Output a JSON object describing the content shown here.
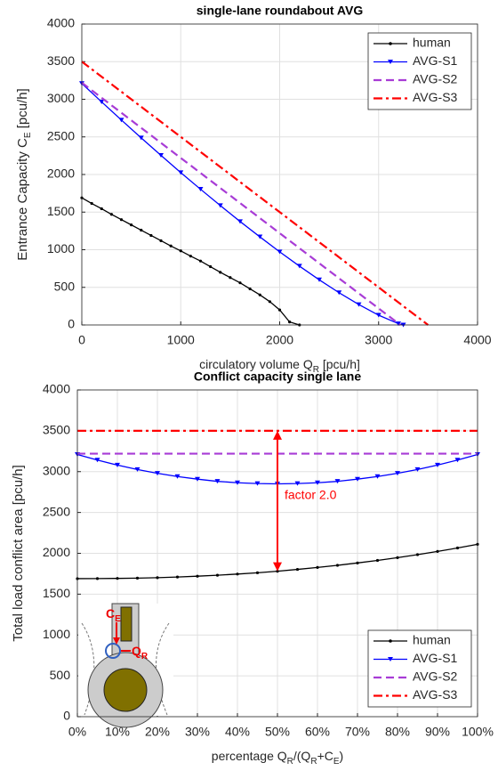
{
  "chart_data": [
    {
      "type": "line",
      "title": "single-lane roundabout AVG",
      "xlabel": [
        "circulatory volume Q",
        "R",
        " [pcu/h]"
      ],
      "ylabel": [
        "Entrance Capacity C",
        "E",
        " [pcu/h]"
      ],
      "xlim": [
        0,
        4000
      ],
      "xticks": [
        0,
        1000,
        2000,
        3000,
        4000
      ],
      "ylim": [
        0,
        4000
      ],
      "yticks": [
        0,
        500,
        1000,
        1500,
        2000,
        2500,
        3000,
        3500,
        4000
      ],
      "grid": true,
      "legend": "upper right",
      "series": [
        {
          "name": "human",
          "color": "#000000",
          "linestyle": "solid",
          "marker": "dot",
          "x": [
            0,
            100,
            200,
            300,
            400,
            500,
            600,
            700,
            800,
            900,
            1000,
            1100,
            1200,
            1300,
            1400,
            1500,
            1600,
            1700,
            1800,
            1900,
            2000,
            2100,
            2200
          ],
          "values": [
            1690,
            1615,
            1545,
            1470,
            1400,
            1330,
            1260,
            1190,
            1120,
            1050,
            985,
            915,
            850,
            775,
            700,
            630,
            560,
            480,
            400,
            310,
            200,
            40,
            0
          ]
        },
        {
          "name": "AVG-S1",
          "color": "#0000ff",
          "linestyle": "solid",
          "marker": "triangle_down",
          "x": [
            0,
            200,
            400,
            600,
            800,
            1000,
            1200,
            1400,
            1600,
            1800,
            2000,
            2200,
            2400,
            2600,
            2800,
            3000,
            3200,
            3250
          ],
          "values": [
            3210,
            2965,
            2724,
            2487,
            2255,
            2025,
            1804,
            1587,
            1375,
            1171,
            972,
            782,
            600,
            429,
            271,
            130,
            17,
            0
          ]
        },
        {
          "name": "AVG-S2",
          "color": "#a83cd6",
          "linestyle": "dashed",
          "marker": "none",
          "x": [
            0,
            3220
          ],
          "values": [
            3220,
            0
          ]
        },
        {
          "name": "AVG-S3",
          "color": "#ff0000",
          "linestyle": "dashdot",
          "marker": "none",
          "x": [
            0,
            3500
          ],
          "values": [
            3500,
            0
          ]
        }
      ]
    },
    {
      "type": "line",
      "title": "Conflict capacity single lane",
      "xlabel": [
        "percentage Q",
        "R",
        "/(Q",
        "R",
        "+C",
        "E",
        ")"
      ],
      "ylabel": [
        "Total load conflict area [pcu/h]"
      ],
      "xlim": [
        0,
        100
      ],
      "xticks": [
        {
          "value": 0,
          "label": "0%"
        },
        {
          "value": 10,
          "label": "10%"
        },
        {
          "value": 20,
          "label": "20%"
        },
        {
          "value": 30,
          "label": "30%"
        },
        {
          "value": 40,
          "label": "40%"
        },
        {
          "value": 50,
          "label": "50%"
        },
        {
          "value": 60,
          "label": "60%"
        },
        {
          "value": 70,
          "label": "70%"
        },
        {
          "value": 80,
          "label": "80%"
        },
        {
          "value": 90,
          "label": "90%"
        },
        {
          "value": 100,
          "label": "100%"
        }
      ],
      "ylim": [
        0,
        4000
      ],
      "yticks": [
        0,
        500,
        1000,
        1500,
        2000,
        2500,
        3000,
        3500,
        4000
      ],
      "grid": true,
      "legend": "lower right",
      "annotation": "factor 2.0",
      "inset_labels": {
        "entry": [
          "C",
          "E"
        ],
        "circulating": [
          "Q",
          "R"
        ]
      },
      "series": [
        {
          "name": "human",
          "color": "#000000",
          "linestyle": "solid",
          "marker": "dot",
          "x": [
            0,
            5,
            10,
            15,
            20,
            25,
            30,
            35,
            40,
            45,
            50,
            55,
            60,
            65,
            70,
            75,
            80,
            85,
            90,
            95,
            100
          ],
          "values": [
            1690,
            1691,
            1693,
            1696,
            1702,
            1710,
            1720,
            1732,
            1746,
            1762,
            1781,
            1803,
            1827,
            1853,
            1882,
            1913,
            1947,
            1984,
            2023,
            2065,
            2110
          ]
        },
        {
          "name": "AVG-S1",
          "color": "#0000ff",
          "linestyle": "solid",
          "marker": "triangle_down",
          "x": [
            0,
            5,
            10,
            15,
            20,
            25,
            30,
            35,
            40,
            45,
            50,
            55,
            60,
            65,
            70,
            75,
            80,
            85,
            90,
            95,
            100
          ],
          "values": [
            3210,
            3142,
            3080,
            3026,
            2980,
            2940,
            2908,
            2881,
            2864,
            2854,
            2850,
            2854,
            2864,
            2881,
            2908,
            2940,
            2980,
            3026,
            3080,
            3142,
            3210
          ]
        },
        {
          "name": "AVG-S2",
          "color": "#a83cd6",
          "linestyle": "dashed",
          "marker": "none",
          "x": [
            0,
            100
          ],
          "values": [
            3220,
            3220
          ]
        },
        {
          "name": "AVG-S3",
          "color": "#ff0000",
          "linestyle": "dashdot",
          "marker": "none",
          "x": [
            0,
            100
          ],
          "values": [
            3500,
            3500
          ]
        }
      ]
    }
  ]
}
